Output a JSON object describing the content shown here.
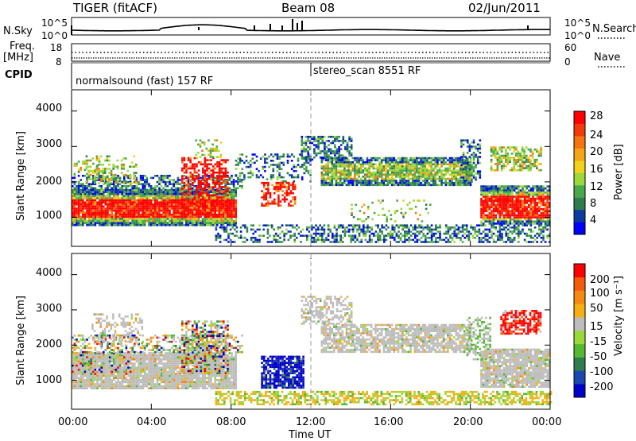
{
  "header": {
    "radar": "TIGER (fitACF)",
    "beam": "Beam 08",
    "date": "02/Jun/2011"
  },
  "top_panels": {
    "nsky_label": "N.Sky",
    "nsearch_label": "N.Search",
    "nsky_ticks": [
      "10^5",
      "10^0"
    ],
    "nsearch_ticks": [
      "10^5",
      "10^0"
    ],
    "freq_label": "Freq.",
    "freq_unit": "[MHz]",
    "freq_ticks": [
      "18",
      "8"
    ],
    "nave_label": "Nave",
    "nave_ticks": [
      "60",
      "0"
    ],
    "cpid_label": "CPID",
    "cpid_modes": [
      {
        "name": "normalsound (fast) 157 RF",
        "start_hour": 0
      },
      {
        "name": "stereo_scan 8551 RF",
        "start_hour": 12
      }
    ]
  },
  "chart_data": [
    {
      "type": "heatmap",
      "ylabel": "Slant Range [km]",
      "xlabel": "",
      "y_ticks": [
        "1000",
        "2000",
        "3000",
        "4000"
      ],
      "ylim": [
        180,
        4600
      ],
      "colorbar": {
        "label": "Power [dB]",
        "ticks": [
          "28",
          "24",
          "20",
          "16",
          "12",
          "8",
          "4"
        ],
        "colors": [
          "#0000ff",
          "#0a3ca0",
          "#2e7d4f",
          "#49a84a",
          "#9ad93a",
          "#f2d21a",
          "#f5a516",
          "#f57410",
          "#f23a0a",
          "#ff0000"
        ]
      }
    },
    {
      "type": "heatmap",
      "ylabel": "Slant Range [km]",
      "xlabel": "Time UT",
      "y_ticks": [
        "1000",
        "2000",
        "3000",
        "4000"
      ],
      "x_ticks": [
        "00:00",
        "04:00",
        "08:00",
        "12:00",
        "16:00",
        "20:00",
        "00:00"
      ],
      "ylim": [
        180,
        4600
      ],
      "colorbar": {
        "label": "Velocity [m s⁻¹]",
        "ticks": [
          "200",
          "100",
          "50",
          "15",
          "-15",
          "-50",
          "-100",
          "-200"
        ],
        "colors": [
          "#0000c8",
          "#1a48b0",
          "#2e7d4f",
          "#55b832",
          "#9ad93a",
          "#bdbdbd",
          "#f5b014",
          "#f58a10",
          "#f55a0a",
          "#ff0000"
        ]
      }
    }
  ]
}
